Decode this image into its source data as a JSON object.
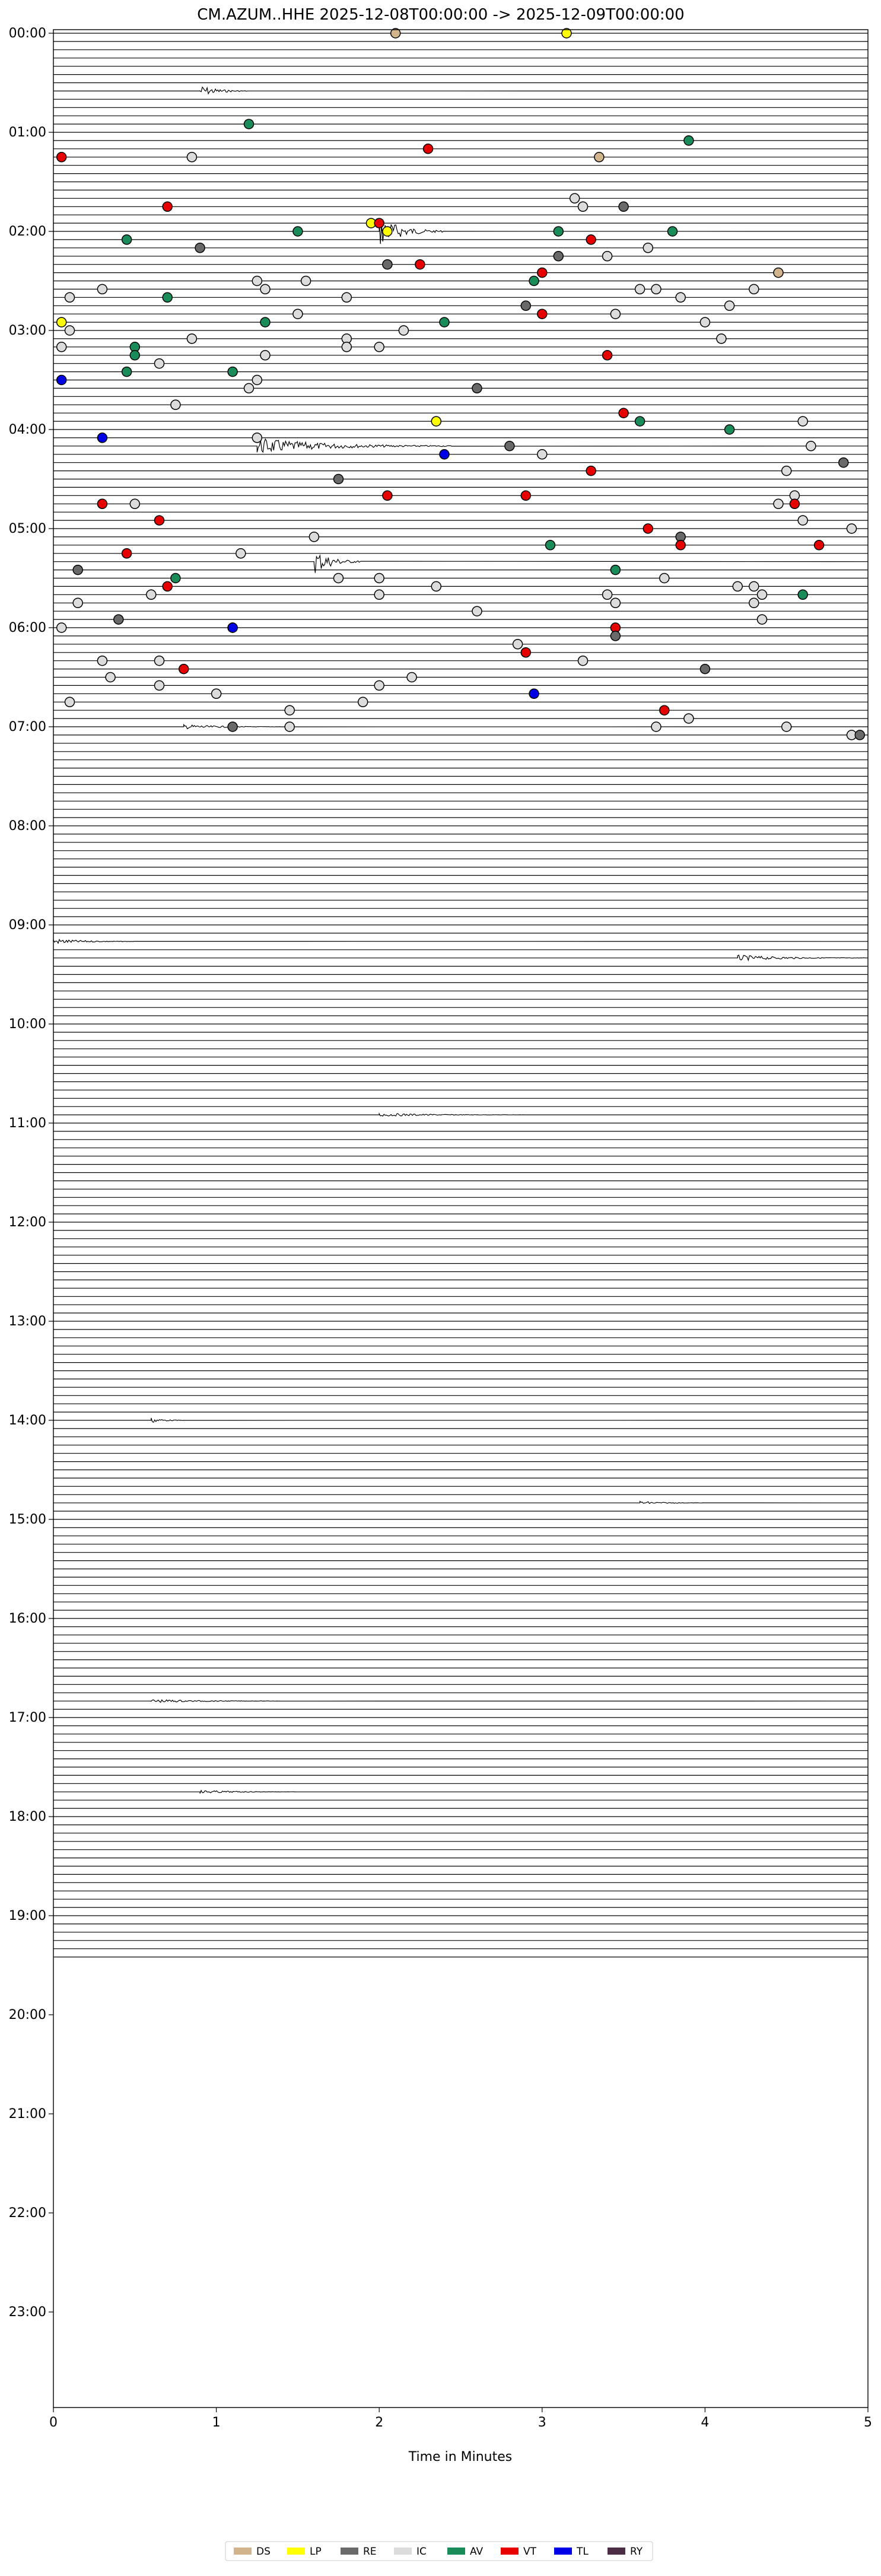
{
  "chart_data": {
    "type": "helicorder",
    "title": "CM.AZUM..HHE  2025-12-08T00:00:00 -> 2025-12-09T00:00:00",
    "xlabel": "Time in Minutes",
    "ylabel": "",
    "xlim": [
      0,
      5
    ],
    "x_ticks": [
      "0",
      "1",
      "2",
      "3",
      "4",
      "5"
    ],
    "y_tick_labels": [
      "00:00",
      "01:00",
      "02:00",
      "03:00",
      "04:00",
      "05:00",
      "06:00",
      "07:00",
      "08:00",
      "09:00",
      "10:00",
      "11:00",
      "12:00",
      "13:00",
      "14:00",
      "15:00",
      "16:00",
      "17:00",
      "18:00",
      "19:00",
      "20:00",
      "21:00",
      "22:00",
      "23:00"
    ],
    "rows_per_hour": 12,
    "trace_rows_recorded": 234,
    "legend": [
      {
        "code": "DS",
        "color": "#d2b48c"
      },
      {
        "code": "LP",
        "color": "#ffff00"
      },
      {
        "code": "RE",
        "color": "#696969"
      },
      {
        "code": "IC",
        "color": "#dcdcdc"
      },
      {
        "code": "AV",
        "color": "#1a8c5a"
      },
      {
        "code": "VT",
        "color": "#e60000"
      },
      {
        "code": "TL",
        "color": "#0000e6"
      },
      {
        "code": "RY",
        "color": "#4b2e45"
      }
    ],
    "events": [
      {
        "t": "00:00",
        "m": 2.1,
        "c": "DS"
      },
      {
        "t": "00:00",
        "m": 3.15,
        "c": "LP"
      },
      {
        "t": "00:55",
        "m": 1.2,
        "c": "AV"
      },
      {
        "t": "01:05",
        "m": 3.9,
        "c": "AV"
      },
      {
        "t": "01:10",
        "m": 2.3,
        "c": "VT"
      },
      {
        "t": "01:15",
        "m": 0.05,
        "c": "VT"
      },
      {
        "t": "01:15",
        "m": 0.85,
        "c": "IC"
      },
      {
        "t": "01:15",
        "m": 3.35,
        "c": "DS"
      },
      {
        "t": "01:40",
        "m": 3.2,
        "c": "IC"
      },
      {
        "t": "01:45",
        "m": 3.25,
        "c": "IC"
      },
      {
        "t": "01:45",
        "m": 0.7,
        "c": "VT"
      },
      {
        "t": "01:45",
        "m": 3.5,
        "c": "RE"
      },
      {
        "t": "01:55",
        "m": 1.95,
        "c": "LP"
      },
      {
        "t": "01:55",
        "m": 2.0,
        "c": "VT"
      },
      {
        "t": "02:00",
        "m": 1.5,
        "c": "AV"
      },
      {
        "t": "02:00",
        "m": 3.1,
        "c": "AV"
      },
      {
        "t": "02:00",
        "m": 3.8,
        "c": "AV"
      },
      {
        "t": "02:00",
        "m": 2.05,
        "c": "LP"
      },
      {
        "t": "02:05",
        "m": 0.45,
        "c": "AV"
      },
      {
        "t": "02:05",
        "m": 3.3,
        "c": "VT"
      },
      {
        "t": "02:10",
        "m": 0.9,
        "c": "RE"
      },
      {
        "t": "02:10",
        "m": 3.65,
        "c": "IC"
      },
      {
        "t": "02:15",
        "m": 3.1,
        "c": "RE"
      },
      {
        "t": "02:15",
        "m": 3.4,
        "c": "IC"
      },
      {
        "t": "02:20",
        "m": 2.05,
        "c": "RE"
      },
      {
        "t": "02:20",
        "m": 2.25,
        "c": "VT"
      },
      {
        "t": "02:25",
        "m": 3.0,
        "c": "VT"
      },
      {
        "t": "02:25",
        "m": 4.45,
        "c": "DS"
      },
      {
        "t": "02:30",
        "m": 2.95,
        "c": "AV"
      },
      {
        "t": "02:30",
        "m": 1.25,
        "c": "IC"
      },
      {
        "t": "02:30",
        "m": 1.55,
        "c": "IC"
      },
      {
        "t": "02:35",
        "m": 3.6,
        "c": "IC"
      },
      {
        "t": "02:35",
        "m": 0.3,
        "c": "IC"
      },
      {
        "t": "02:35",
        "m": 3.7,
        "c": "IC"
      },
      {
        "t": "02:35",
        "m": 4.3,
        "c": "IC"
      },
      {
        "t": "02:35",
        "m": 1.3,
        "c": "IC"
      },
      {
        "t": "02:40",
        "m": 0.1,
        "c": "IC"
      },
      {
        "t": "02:40",
        "m": 0.7,
        "c": "AV"
      },
      {
        "t": "02:40",
        "m": 1.8,
        "c": "IC"
      },
      {
        "t": "02:40",
        "m": 3.85,
        "c": "IC"
      },
      {
        "t": "02:45",
        "m": 2.9,
        "c": "RE"
      },
      {
        "t": "02:45",
        "m": 4.15,
        "c": "IC"
      },
      {
        "t": "02:50",
        "m": 1.5,
        "c": "IC"
      },
      {
        "t": "02:50",
        "m": 3.0,
        "c": "VT"
      },
      {
        "t": "02:50",
        "m": 3.45,
        "c": "IC"
      },
      {
        "t": "02:55",
        "m": 0.05,
        "c": "LP"
      },
      {
        "t": "02:55",
        "m": 1.3,
        "c": "AV"
      },
      {
        "t": "02:55",
        "m": 2.4,
        "c": "AV"
      },
      {
        "t": "02:55",
        "m": 4.0,
        "c": "IC"
      },
      {
        "t": "03:00",
        "m": 0.1,
        "c": "IC"
      },
      {
        "t": "03:00",
        "m": 2.15,
        "c": "IC"
      },
      {
        "t": "03:05",
        "m": 0.85,
        "c": "IC"
      },
      {
        "t": "03:05",
        "m": 1.8,
        "c": "IC"
      },
      {
        "t": "03:05",
        "m": 4.1,
        "c": "IC"
      },
      {
        "t": "03:10",
        "m": 0.05,
        "c": "IC"
      },
      {
        "t": "03:10",
        "m": 0.5,
        "c": "AV"
      },
      {
        "t": "03:10",
        "m": 1.8,
        "c": "IC"
      },
      {
        "t": "03:10",
        "m": 2.0,
        "c": "IC"
      },
      {
        "t": "03:15",
        "m": 0.5,
        "c": "AV"
      },
      {
        "t": "03:15",
        "m": 1.3,
        "c": "IC"
      },
      {
        "t": "03:15",
        "m": 3.4,
        "c": "VT"
      },
      {
        "t": "03:20",
        "m": 0.65,
        "c": "IC"
      },
      {
        "t": "03:25",
        "m": 0.45,
        "c": "AV"
      },
      {
        "t": "03:25",
        "m": 1.1,
        "c": "AV"
      },
      {
        "t": "03:30",
        "m": 0.05,
        "c": "TL"
      },
      {
        "t": "03:30",
        "m": 1.25,
        "c": "IC"
      },
      {
        "t": "03:35",
        "m": 1.2,
        "c": "IC"
      },
      {
        "t": "03:35",
        "m": 2.6,
        "c": "RE"
      },
      {
        "t": "03:45",
        "m": 0.75,
        "c": "IC"
      },
      {
        "t": "03:50",
        "m": 3.5,
        "c": "VT"
      },
      {
        "t": "03:55",
        "m": 2.35,
        "c": "LP"
      },
      {
        "t": "03:55",
        "m": 3.6,
        "c": "AV"
      },
      {
        "t": "03:55",
        "m": 4.6,
        "c": "IC"
      },
      {
        "t": "04:00",
        "m": 4.15,
        "c": "AV"
      },
      {
        "t": "04:05",
        "m": 0.3,
        "c": "TL"
      },
      {
        "t": "04:05",
        "m": 1.25,
        "c": "IC"
      },
      {
        "t": "04:10",
        "m": 2.8,
        "c": "RE"
      },
      {
        "t": "04:10",
        "m": 4.65,
        "c": "IC"
      },
      {
        "t": "04:15",
        "m": 2.4,
        "c": "TL"
      },
      {
        "t": "04:15",
        "m": 3.0,
        "c": "IC"
      },
      {
        "t": "04:20",
        "m": 4.85,
        "c": "RE"
      },
      {
        "t": "04:25",
        "m": 3.3,
        "c": "VT"
      },
      {
        "t": "04:25",
        "m": 4.5,
        "c": "IC"
      },
      {
        "t": "04:30",
        "m": 1.75,
        "c": "RE"
      },
      {
        "t": "04:40",
        "m": 2.05,
        "c": "VT"
      },
      {
        "t": "04:40",
        "m": 2.9,
        "c": "VT"
      },
      {
        "t": "04:40",
        "m": 4.55,
        "c": "IC"
      },
      {
        "t": "04:45",
        "m": 0.3,
        "c": "VT"
      },
      {
        "t": "04:45",
        "m": 0.5,
        "c": "IC"
      },
      {
        "t": "04:45",
        "m": 4.55,
        "c": "VT"
      },
      {
        "t": "04:45",
        "m": 4.45,
        "c": "IC"
      },
      {
        "t": "04:55",
        "m": 0.65,
        "c": "VT"
      },
      {
        "t": "04:55",
        "m": 4.6,
        "c": "IC"
      },
      {
        "t": "05:00",
        "m": 3.65,
        "c": "VT"
      },
      {
        "t": "05:00",
        "m": 4.9,
        "c": "IC"
      },
      {
        "t": "05:05",
        "m": 1.6,
        "c": "IC"
      },
      {
        "t": "05:05",
        "m": 3.85,
        "c": "RE"
      },
      {
        "t": "05:10",
        "m": 3.05,
        "c": "AV"
      },
      {
        "t": "05:10",
        "m": 3.85,
        "c": "VT"
      },
      {
        "t": "05:10",
        "m": 4.7,
        "c": "VT"
      },
      {
        "t": "05:15",
        "m": 1.15,
        "c": "IC"
      },
      {
        "t": "05:15",
        "m": 0.45,
        "c": "VT"
      },
      {
        "t": "05:25",
        "m": 0.15,
        "c": "RE"
      },
      {
        "t": "05:25",
        "m": 3.45,
        "c": "AV"
      },
      {
        "t": "05:30",
        "m": 0.75,
        "c": "AV"
      },
      {
        "t": "05:30",
        "m": 1.75,
        "c": "IC"
      },
      {
        "t": "05:30",
        "m": 2.0,
        "c": "IC"
      },
      {
        "t": "05:30",
        "m": 3.75,
        "c": "IC"
      },
      {
        "t": "05:35",
        "m": 0.7,
        "c": "VT"
      },
      {
        "t": "05:35",
        "m": 2.35,
        "c": "IC"
      },
      {
        "t": "05:35",
        "m": 4.2,
        "c": "IC"
      },
      {
        "t": "05:35",
        "m": 4.3,
        "c": "IC"
      },
      {
        "t": "05:40",
        "m": 0.6,
        "c": "IC"
      },
      {
        "t": "05:40",
        "m": 2.0,
        "c": "IC"
      },
      {
        "t": "05:40",
        "m": 3.4,
        "c": "IC"
      },
      {
        "t": "05:40",
        "m": 4.35,
        "c": "IC"
      },
      {
        "t": "05:40",
        "m": 4.6,
        "c": "AV"
      },
      {
        "t": "05:45",
        "m": 3.45,
        "c": "IC"
      },
      {
        "t": "05:45",
        "m": 0.15,
        "c": "IC"
      },
      {
        "t": "05:45",
        "m": 4.3,
        "c": "IC"
      },
      {
        "t": "05:50",
        "m": 2.6,
        "c": "IC"
      },
      {
        "t": "05:55",
        "m": 0.4,
        "c": "RE"
      },
      {
        "t": "05:55",
        "m": 4.35,
        "c": "IC"
      },
      {
        "t": "06:00",
        "m": 1.1,
        "c": "VT"
      },
      {
        "t": "06:00",
        "m": 1.1,
        "c": "TL"
      },
      {
        "t": "06:00",
        "m": 0.05,
        "c": "IC"
      },
      {
        "t": "06:00",
        "m": 3.45,
        "c": "VT"
      },
      {
        "t": "06:05",
        "m": 3.45,
        "c": "RE"
      },
      {
        "t": "06:10",
        "m": 2.85,
        "c": "IC"
      },
      {
        "t": "06:15",
        "m": 2.9,
        "c": "VT"
      },
      {
        "t": "06:20",
        "m": 0.3,
        "c": "IC"
      },
      {
        "t": "06:20",
        "m": 0.65,
        "c": "IC"
      },
      {
        "t": "06:20",
        "m": 3.25,
        "c": "IC"
      },
      {
        "t": "06:25",
        "m": 0.8,
        "c": "VT"
      },
      {
        "t": "06:25",
        "m": 4.0,
        "c": "RE"
      },
      {
        "t": "06:30",
        "m": 0.35,
        "c": "IC"
      },
      {
        "t": "06:30",
        "m": 2.2,
        "c": "IC"
      },
      {
        "t": "06:35",
        "m": 0.65,
        "c": "IC"
      },
      {
        "t": "06:35",
        "m": 2.0,
        "c": "IC"
      },
      {
        "t": "06:40",
        "m": 2.95,
        "c": "TL"
      },
      {
        "t": "06:40",
        "m": 1.0,
        "c": "IC"
      },
      {
        "t": "06:45",
        "m": 0.1,
        "c": "IC"
      },
      {
        "t": "06:45",
        "m": 1.9,
        "c": "IC"
      },
      {
        "t": "06:50",
        "m": 3.75,
        "c": "VT"
      },
      {
        "t": "06:50",
        "m": 1.45,
        "c": "IC"
      },
      {
        "t": "06:55",
        "m": 3.9,
        "c": "IC"
      },
      {
        "t": "07:00",
        "m": 1.1,
        "c": "RE"
      },
      {
        "t": "07:00",
        "m": 1.45,
        "c": "IC"
      },
      {
        "t": "07:00",
        "m": 3.7,
        "c": "IC"
      },
      {
        "t": "07:00",
        "m": 4.5,
        "c": "IC"
      },
      {
        "t": "07:05",
        "m": 4.9,
        "c": "IC"
      },
      {
        "t": "07:05",
        "m": 4.95,
        "c": "RE"
      }
    ]
  }
}
